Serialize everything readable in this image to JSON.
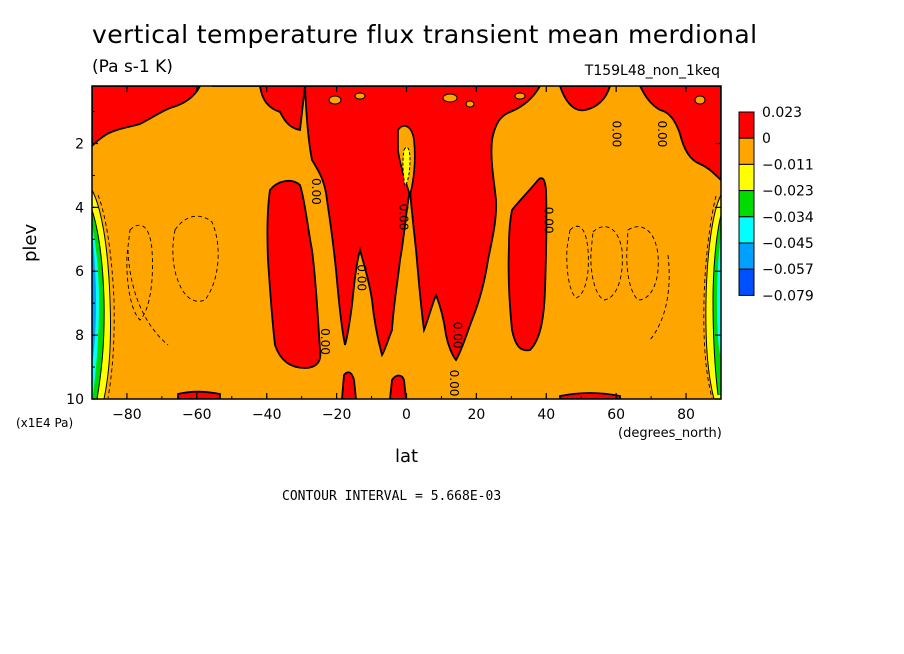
{
  "chart_data": {
    "type": "contour",
    "title": "vertical temperature flux transient mean merdional",
    "units": "(Pa s-1 K)",
    "run_label": "T159L48_non_1keq",
    "xlabel": "lat",
    "xunits": "(degrees_north)",
    "ylabel": "plev",
    "yscale": "(x1E4 Pa)",
    "xlim": [
      -90,
      90
    ],
    "ylim": [
      0.2,
      10
    ],
    "y_inverted": true,
    "x_ticks": [
      -80,
      -60,
      -40,
      -20,
      0,
      20,
      40,
      60,
      80
    ],
    "y_ticks": [
      2,
      4,
      6,
      8,
      10
    ],
    "contour_interval_text": "CONTOUR INTERVAL = 5.668E-03",
    "contour_label": "0.00",
    "colorbar": {
      "labels": [
        "0.023",
        "0",
        "−0.011",
        "−0.023",
        "−0.034",
        "−0.045",
        "−0.057",
        "−0.079"
      ],
      "colors": [
        "#ff0000",
        "#ffa500",
        "#ffff00",
        "#00dc00",
        "#00ffff",
        "#00a0ff",
        "#0050ff"
      ]
    },
    "positive_regions": [
      {
        "name": "upper-left-cap",
        "lon_range": [
          -90,
          -75
        ],
        "p_range": [
          0.2,
          2.5
        ]
      },
      {
        "name": "sh-midlat-column",
        "lon_range": [
          -38,
          -27
        ],
        "p_range": [
          3.5,
          8.8
        ]
      },
      {
        "name": "sh-subtropic-column",
        "lon_range": [
          -25,
          -20
        ],
        "p_range": [
          1.5,
          9.5
        ]
      },
      {
        "name": "equatorial-column",
        "lon_range": [
          -16,
          25
        ],
        "p_range": [
          0.2,
          6
        ]
      },
      {
        "name": "nh-midlat-column",
        "lon_range": [
          30,
          40
        ],
        "p_range": [
          3.0,
          8.3
        ]
      },
      {
        "name": "upper-right-cap",
        "lon_range": [
          75,
          90
        ],
        "p_range": [
          0.2,
          2.4
        ]
      }
    ],
    "negative_regions": [
      {
        "name": "sh-polar-edge",
        "lon_range": [
          -90,
          -86
        ],
        "p_range": [
          3.3,
          10
        ],
        "min_value": -0.079
      },
      {
        "name": "nh-polar-edge",
        "lon_range": [
          86,
          90
        ],
        "p_range": [
          3.3,
          10
        ],
        "min_value": -0.057
      }
    ]
  }
}
